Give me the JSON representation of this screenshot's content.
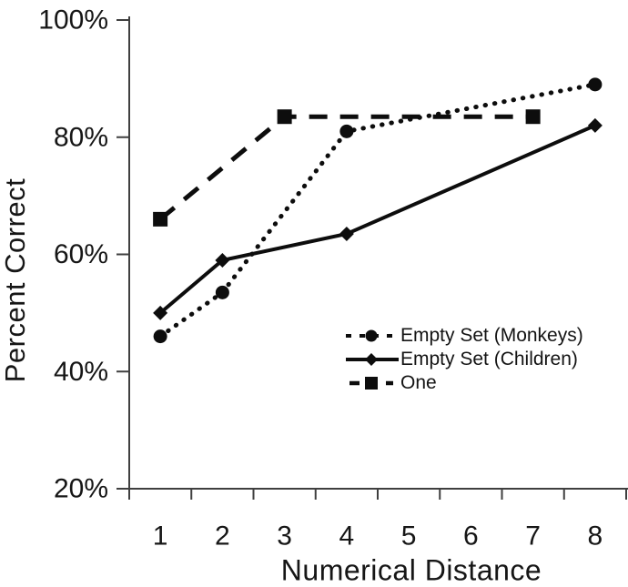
{
  "figure": {
    "background": "#ffffff"
  },
  "chart_data": {
    "type": "line",
    "title": "",
    "xlabel": "Numerical Distance",
    "ylabel": "Percent Correct",
    "x_categories": [
      "1",
      "2",
      "3",
      "4",
      "5",
      "6",
      "7",
      "8"
    ],
    "y_axis": {
      "min": 20,
      "max": 100,
      "ticks": [
        {
          "pct": 100,
          "label": "100%"
        },
        {
          "pct": 80,
          "label": "80%"
        },
        {
          "pct": 60,
          "label": "60%"
        },
        {
          "pct": 40,
          "label": "40%"
        },
        {
          "pct": 20,
          "label": "20%"
        }
      ]
    },
    "grid": false,
    "axis_color": "#3f3f3f",
    "data_color": "#0d0d0d",
    "series": [
      {
        "name": "Empty Set (Monkeys)",
        "line_style": "dotted",
        "marker": "circle",
        "points": [
          {
            "x": 1,
            "y": 46
          },
          {
            "x": 2,
            "y": 53.5
          },
          {
            "x": 4,
            "y": 81
          },
          {
            "x": 8,
            "y": 89
          }
        ]
      },
      {
        "name": "Empty Set (Children)",
        "line_style": "solid",
        "marker": "diamond",
        "points": [
          {
            "x": 1,
            "y": 50
          },
          {
            "x": 2,
            "y": 59
          },
          {
            "x": 4,
            "y": 63.5
          },
          {
            "x": 8,
            "y": 82
          }
        ]
      },
      {
        "name": "One",
        "line_style": "dashed",
        "marker": "square",
        "points": [
          {
            "x": 1,
            "y": 66
          },
          {
            "x": 3,
            "y": 83.5
          },
          {
            "x": 7,
            "y": 83.5
          }
        ]
      }
    ],
    "legend": {
      "position": "inside-right-middle",
      "items": [
        "Empty Set (Monkeys)",
        "Empty Set (Children)",
        "One"
      ]
    }
  }
}
